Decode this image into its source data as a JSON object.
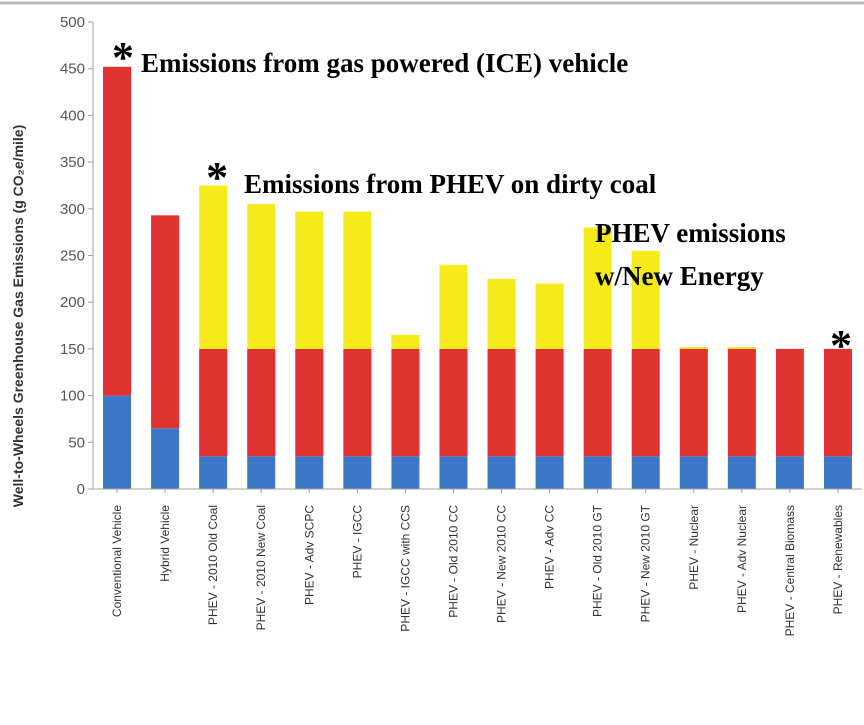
{
  "chart_data": {
    "type": "bar",
    "stacked": true,
    "ylabel": "Well-to-Wheels Greenhouse Gas Emissions (g CO₂e/mile)",
    "ylim": [
      0,
      500
    ],
    "yticks": [
      0,
      50,
      100,
      150,
      200,
      250,
      300,
      350,
      400,
      450,
      500
    ],
    "grid": false,
    "categories": [
      "Conventional Vehicle",
      "Hybrid Vehicle",
      "PHEV - 2010 Old Coal",
      "PHEV - 2010 New Coal",
      "PHEV - Adv SCPC",
      "PHEV - IGCC",
      "PHEV - IGCC with CCS",
      "PHEV - Old 2010 CC",
      "PHEV - New 2010 CC",
      "PHEV - Adv CC",
      "PHEV - Old 2010 GT",
      "PHEV - New 2010 GT",
      "PHEV - Nuclear",
      "PHEV - Adv Nuclear",
      "PHEV - Central Biomass",
      "PHEV - Renewables"
    ],
    "series": [
      {
        "color": "#3b78c8",
        "values": [
          100,
          65,
          35,
          35,
          35,
          35,
          35,
          35,
          35,
          35,
          35,
          35,
          35,
          35,
          35,
          35
        ]
      },
      {
        "color": "#e0322e",
        "values": [
          352,
          228,
          115,
          115,
          115,
          115,
          115,
          115,
          115,
          115,
          115,
          115,
          115,
          115,
          115,
          115
        ]
      },
      {
        "color": "#f5ea1a",
        "values": [
          0,
          0,
          175,
          155,
          147,
          147,
          15,
          90,
          75,
          70,
          130,
          105,
          2,
          2,
          0,
          0
        ]
      }
    ],
    "annotations": [
      {
        "text": "Emissions from gas powered (ICE) vehicle"
      },
      {
        "text": "Emissions from PHEV on dirty coal"
      },
      {
        "text": "PHEV emissions"
      },
      {
        "text": "w/New Energy"
      }
    ],
    "asterisk": "*"
  }
}
